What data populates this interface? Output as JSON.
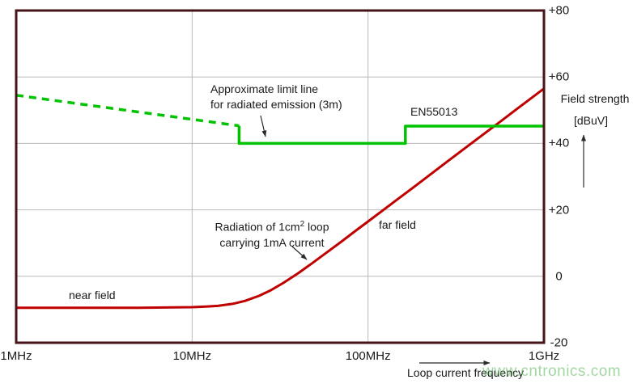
{
  "watermark": {
    "text": "www.cntronics.com",
    "color": "#6dbd6d"
  },
  "chart_data": {
    "type": "line",
    "title": "",
    "x_axis": {
      "label": "Loop current frequency",
      "scale": "log",
      "unit": "MHz",
      "range_mhz": [
        1,
        1000
      ],
      "ticks": [
        {
          "label": "1MHz",
          "mhz": 1
        },
        {
          "label": "10MHz",
          "mhz": 10
        },
        {
          "label": "100MHz",
          "mhz": 100
        },
        {
          "label": "1GHz",
          "mhz": 1000
        }
      ]
    },
    "y_axis": {
      "label": "Field strength",
      "unit_label": "[dBuV]",
      "range_db": [
        -20,
        80
      ],
      "ticks": [
        {
          "label": "+80",
          "db": 80
        },
        {
          "label": "+60",
          "db": 60
        },
        {
          "label": "+40",
          "db": 40
        },
        {
          "label": "+20",
          "db": 20
        },
        {
          "label": "0",
          "db": 0
        },
        {
          "label": "-20",
          "db": -20
        }
      ]
    },
    "grid": true,
    "colors": {
      "radiation_curve": "#c00000",
      "limit_line": "#00c300",
      "plot_border": "#461418",
      "gridline": "#b9b9b9"
    },
    "series": [
      {
        "name": "loop-radiation-curve",
        "color": "#c00000",
        "style": "solid",
        "width": 3,
        "points_mhz_db": [
          [
            1,
            -9.5
          ],
          [
            2,
            -9.5
          ],
          [
            3,
            -9.5
          ],
          [
            5,
            -9.5
          ],
          [
            7,
            -9.4
          ],
          [
            10,
            -9.3
          ],
          [
            12,
            -9.1
          ],
          [
            14,
            -8.9
          ],
          [
            17,
            -8.3
          ],
          [
            20,
            -7.4
          ],
          [
            24,
            -5.9
          ],
          [
            28,
            -4.2
          ],
          [
            33,
            -2.0
          ],
          [
            40,
            0.9
          ],
          [
            48,
            3.9
          ],
          [
            58,
            7.1
          ],
          [
            70,
            10.3
          ],
          [
            85,
            13.7
          ],
          [
            100,
            16.5
          ],
          [
            140,
            22.3
          ],
          [
            200,
            28.5
          ],
          [
            280,
            34.4
          ],
          [
            400,
            40.6
          ],
          [
            550,
            46.1
          ],
          [
            750,
            51.5
          ],
          [
            1000,
            56.5
          ]
        ]
      },
      {
        "name": "limit-line-dashed",
        "color": "#00c300",
        "style": "dashed",
        "width": 3.5,
        "points_mhz_db": [
          [
            1,
            54.5
          ],
          [
            18.5,
            45.3
          ]
        ]
      },
      {
        "name": "limit-line-solid",
        "color": "#00c300",
        "style": "solid",
        "width": 3.5,
        "points_mhz_db": [
          [
            18.5,
            45.3
          ],
          [
            18.5,
            40
          ],
          [
            163,
            40
          ],
          [
            163,
            45.2
          ],
          [
            1000,
            45.2
          ]
        ]
      }
    ],
    "annotations": {
      "limit_line": {
        "line1": "Approximate limit line",
        "line2": "for radiated emission (3m)"
      },
      "en55013": "EN55013",
      "radiation": {
        "part1": "Radiation of 1cm",
        "sup": "2",
        "part2": " loop",
        "line2": "carrying 1mA current"
      },
      "near_field": "near field",
      "far_field": "far field"
    }
  }
}
